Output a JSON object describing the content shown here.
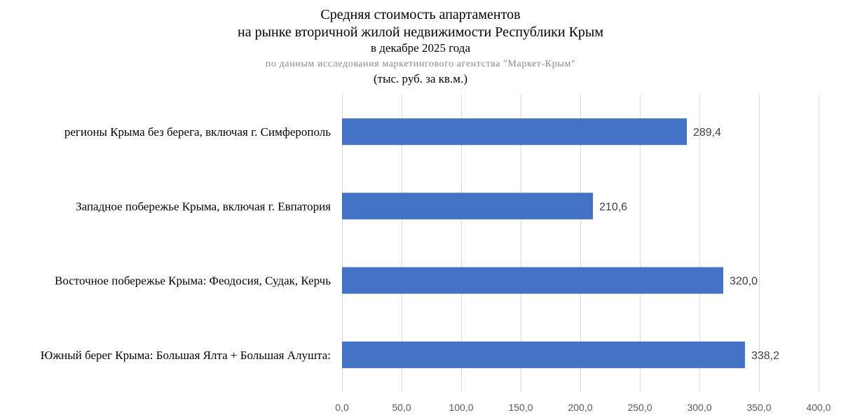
{
  "chart_data": {
    "type": "bar",
    "orientation": "horizontal",
    "title": {
      "line1": "Средняя стоимость апартаментов",
      "line2": "на рынке вторичной жилой недвижимости Республики Крым"
    },
    "subtitle": "в декабре 2025 года",
    "source": "по данным исследования маркетингового агентства \"Маркет-Крым\"",
    "unit": "(тыс. руб. за кв.м.)",
    "categories": [
      "регионы Крыма без берега, включая г. Симферополь",
      "Западное побережье Крыма, включая г. Евпатория",
      "Восточное побережье Крыма: Феодосия, Судак, Керчь",
      "Южный берег Крыма: Большая Ялта + Большая Алушта:"
    ],
    "values": [
      289.4,
      210.6,
      320.0,
      338.2
    ],
    "value_labels": [
      "289,4",
      "210,6",
      "320,0",
      "338,2"
    ],
    "xlim": [
      0,
      400
    ],
    "xticks": [
      "0,0",
      "50,0",
      "100,0",
      "150,0",
      "200,0",
      "250,0",
      "300,0",
      "350,0",
      "400,0"
    ],
    "grid": true,
    "bar_color": "#4472c4"
  }
}
